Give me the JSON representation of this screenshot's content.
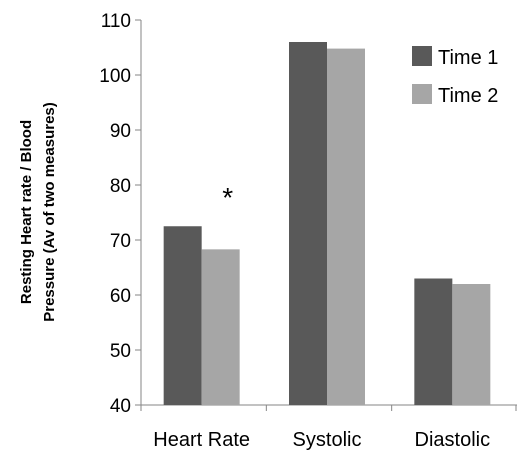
{
  "chart_data": {
    "type": "bar",
    "title": "",
    "xlabel": "",
    "ylabel_lines": [
      "Resting Heart rate / Blood",
      "Pressure    (Av of two measures)"
    ],
    "categories": [
      "Heart Rate",
      "Systolic",
      "Diastolic"
    ],
    "series": [
      {
        "name": "Time 1",
        "values": [
          72.5,
          106,
          63
        ],
        "color": "#595959"
      },
      {
        "name": "Time 2",
        "values": [
          68.3,
          104.8,
          62
        ],
        "color": "#a6a6a6"
      }
    ],
    "ylim": [
      40,
      110
    ],
    "yticks": [
      40,
      50,
      60,
      70,
      80,
      90,
      100,
      110
    ],
    "grid": false,
    "legend_position": "top-right",
    "annotations": [
      {
        "text": "*",
        "category": "Heart Rate",
        "y": 80
      }
    ]
  }
}
